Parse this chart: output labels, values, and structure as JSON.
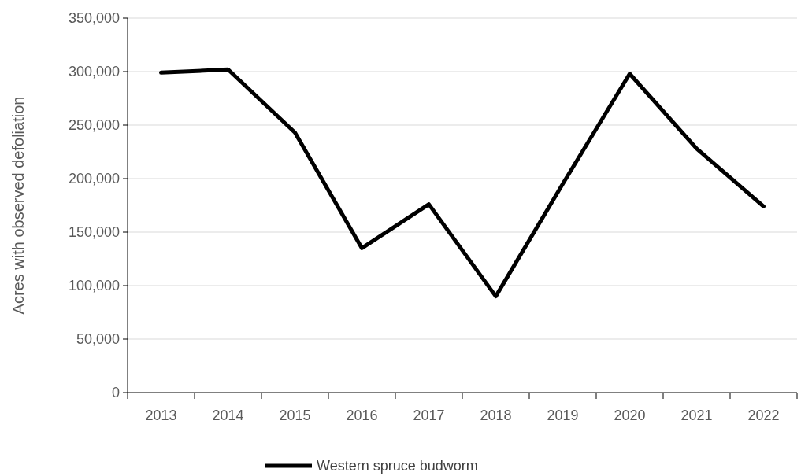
{
  "chart_data": {
    "type": "line",
    "ylabel": "Acres with observed defoliation",
    "categories": [
      "2013",
      "2014",
      "2015",
      "2016",
      "2017",
      "2018",
      "2019",
      "2020",
      "2021",
      "2022"
    ],
    "series": [
      {
        "name": "Western spruce budworm",
        "color": "#000000",
        "values": [
          299000,
          302000,
          243000,
          135000,
          176000,
          90000,
          195000,
          298000,
          228000,
          174000
        ]
      }
    ],
    "ylim": [
      0,
      350000
    ],
    "yticks": [
      {
        "value": 0,
        "label": "0"
      },
      {
        "value": 50000,
        "label": "50,000"
      },
      {
        "value": 100000,
        "label": "100,000"
      },
      {
        "value": 150000,
        "label": "150,000"
      },
      {
        "value": 200000,
        "label": "200,000"
      },
      {
        "value": 250000,
        "label": "250,000"
      },
      {
        "value": 300000,
        "label": "300,000"
      },
      {
        "value": 350000,
        "label": "350,000"
      }
    ],
    "grid": "y",
    "legend": "bottom",
    "marker": "none",
    "line_style": "solid"
  }
}
